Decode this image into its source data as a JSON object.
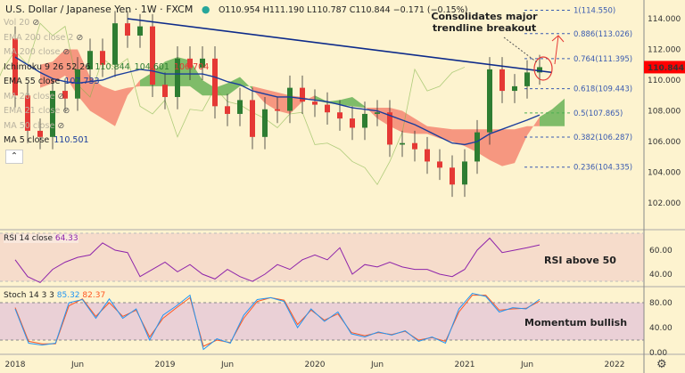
{
  "header": {
    "symbol": "U.S. Dollar / Japanese Yen · 1W · FXCM",
    "ohlc": "O110.954 H111.190 L110.787 C110.844 −0.171 (−0.15%)"
  },
  "legend": [
    {
      "label": "Vol 20",
      "hidden": true
    },
    {
      "label": "EMA 200 close 2",
      "hidden": true
    },
    {
      "label": "MA 200 close",
      "hidden": true
    },
    {
      "label": "Ichimoku 9 26 52 26",
      "values": [
        "110.844",
        "104.601",
        "106.704"
      ],
      "hidden": false
    },
    {
      "label": "EMA 55 close",
      "values": [
        "107.733"
      ],
      "hidden": false
    },
    {
      "label": "MA 20 close",
      "hidden": true
    },
    {
      "label": "EMA 21 close",
      "hidden": true
    },
    {
      "label": "MA 50 close",
      "hidden": true
    },
    {
      "label": "MA 5 close",
      "values": [
        "110.501"
      ],
      "hidden": false
    }
  ],
  "annotations": {
    "breakout": "Consolidates major trendline breakout",
    "rsi": "RSI above 50",
    "stoch": "Momentum bullish"
  },
  "rsi_legend": {
    "label": "RSI 14 close",
    "value": "64.33"
  },
  "stoch_legend": {
    "label": "Stoch 14 3 3",
    "k": "85.32",
    "d": "82.37"
  },
  "colors": {
    "up": "#2e7d32",
    "down": "#e53935",
    "ema": "#1a3d9c",
    "rsi": "#8e24aa",
    "k": "#2196f3",
    "d": "#ff5722",
    "last": "#ff0000"
  },
  "chart_data": {
    "type": "candlestick",
    "title": "U.S. Dollar / Japanese Yen 1W FXCM",
    "price_axis": {
      "ticks": [
        "114.000",
        "112.000",
        "110.000",
        "108.000",
        "106.000",
        "104.000",
        "102.000"
      ],
      "range": [
        100.8,
        115.2
      ]
    },
    "last_price": "110.844",
    "time_axis": {
      "ticks": [
        "2018",
        "Jun",
        "2019",
        "Jun",
        "2020",
        "Jun",
        "2021",
        "Jun",
        "2022"
      ],
      "tick_months": [
        0,
        5,
        12,
        17,
        24,
        29,
        36,
        41,
        48
      ]
    },
    "close": [
      109.0,
      106.7,
      106.3,
      109.3,
      108.8,
      110.7,
      111.9,
      111.0,
      113.7,
      112.9,
      113.5,
      109.7,
      108.9,
      111.4,
      110.8,
      111.4,
      108.3,
      107.8,
      108.7,
      106.3,
      108.1,
      108.0,
      109.5,
      108.6,
      108.4,
      107.9,
      107.5,
      106.9,
      107.8,
      107.9,
      105.8,
      105.9,
      105.5,
      104.7,
      104.3,
      103.2,
      104.7,
      106.6,
      110.7,
      109.3,
      109.6,
      110.5,
      110.844
    ],
    "open0": 112.7,
    "ema55": [
      111.5,
      111.0,
      110.5,
      110.1,
      109.9,
      109.8,
      109.9,
      110.0,
      110.3,
      110.5,
      110.7,
      110.6,
      110.4,
      110.4,
      110.4,
      110.4,
      110.2,
      109.9,
      109.7,
      109.3,
      109.1,
      108.9,
      108.9,
      108.8,
      108.7,
      108.6,
      108.4,
      108.2,
      108.1,
      108.0,
      107.7,
      107.4,
      107.1,
      106.7,
      106.3,
      105.9,
      105.8,
      106.0,
      106.5,
      106.8,
      107.1,
      107.4,
      107.733
    ],
    "cloud": {
      "a": [
        109.5,
        109.8,
        110.3,
        109.0,
        108.0,
        107.5,
        107.0,
        109.0,
        110.0,
        110.5,
        111.2,
        111.5,
        111.3,
        110.0,
        109.5,
        109.8,
        110.2,
        109.4,
        108.5,
        108.0,
        107.8,
        108.6,
        109.0,
        108.6,
        108.7,
        108.9,
        108.3,
        107.5,
        107.0,
        106.6,
        106.5,
        106.5,
        106.2,
        106.0,
        105.7,
        105.3,
        104.8,
        104.4,
        104.6,
        106.4,
        107.6,
        108.1,
        108.8
      ],
      "b": [
        111.0,
        111.2,
        112.0,
        112.0,
        110.2,
        109.6,
        109.3,
        109.5,
        109.6,
        109.6,
        109.6,
        109.6,
        109.6,
        109.0,
        109.0,
        109.0,
        109.6,
        109.6,
        109.4,
        109.2,
        109.0,
        108.9,
        108.7,
        108.5,
        108.4,
        108.3,
        108.2,
        108.2,
        108.2,
        108.0,
        107.5,
        107.0,
        106.9,
        106.8,
        106.8,
        106.8,
        106.8,
        106.8,
        106.8,
        107.0,
        107.0,
        107.0,
        107.0
      ]
    },
    "trendline": {
      "from": [
        9,
        114.0
      ],
      "to": [
        43,
        110.5
      ]
    },
    "fib_levels": [
      {
        "label": "1(114.550)",
        "value": 114.55
      },
      {
        "label": "0.886(113.026)",
        "value": 113.026
      },
      {
        "label": "0.764(111.395)",
        "value": 111.395
      },
      {
        "label": "0.618(109.443)",
        "value": 109.443
      },
      {
        "label": "0.5(107.865)",
        "value": 107.865
      },
      {
        "label": "0.382(106.287)",
        "value": 106.287
      },
      {
        "label": "0.236(104.335)",
        "value": 104.335
      }
    ],
    "rsi": {
      "ticks": [
        "60.00",
        "40.00"
      ],
      "values": [
        52,
        38,
        33,
        44,
        50,
        54,
        56,
        66,
        60,
        58,
        38,
        44,
        50,
        42,
        48,
        40,
        36,
        44,
        38,
        34,
        40,
        48,
        44,
        52,
        56,
        52,
        62,
        40,
        48,
        46,
        50,
        46,
        44,
        44,
        40,
        38,
        44,
        60,
        70,
        58,
        60,
        62,
        64.33
      ]
    },
    "stoch": {
      "ticks": [
        "80.00",
        "40.00",
        "0.00"
      ],
      "k": [
        70,
        15,
        12,
        15,
        80,
        85,
        55,
        86,
        55,
        70,
        20,
        60,
        75,
        92,
        5,
        22,
        15,
        60,
        85,
        88,
        82,
        40,
        70,
        50,
        65,
        30,
        25,
        33,
        28,
        35,
        18,
        25,
        15,
        70,
        95,
        90,
        65,
        72,
        70,
        85.32
      ],
      "d": [
        72,
        18,
        14,
        14,
        75,
        86,
        58,
        80,
        58,
        68,
        25,
        55,
        72,
        88,
        10,
        20,
        16,
        55,
        82,
        88,
        84,
        45,
        68,
        52,
        62,
        32,
        27,
        32,
        29,
        34,
        20,
        24,
        18,
        65,
        92,
        92,
        68,
        70,
        71,
        82.37
      ]
    }
  }
}
